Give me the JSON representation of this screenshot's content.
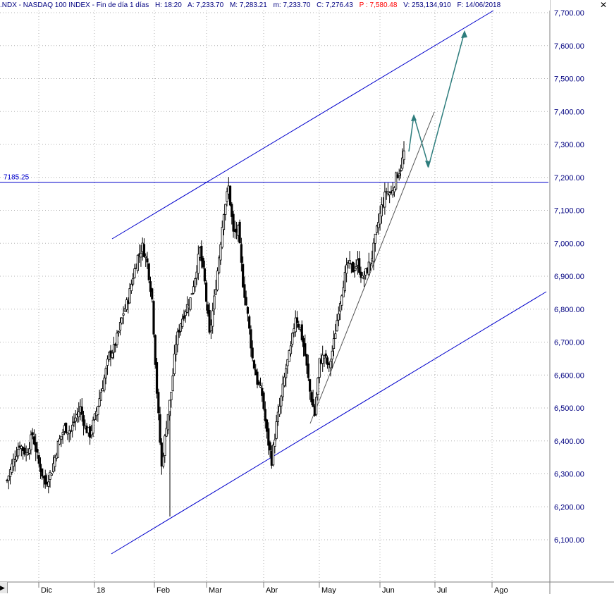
{
  "header": {
    "symbol": ".NDX - NASDAQ 100 INDEX - Fin de día 1 días",
    "high": "H: 18:20",
    "open": "A: 7,233.70",
    "max": "M: 7,283.21",
    "min": "m: 7,233.70",
    "close": "C: 7,276.43",
    "price": "P : 7,580.48",
    "volume": "V: 253,134,910",
    "date": "F: 14/06/2018",
    "close_button": "✕"
  },
  "scroll_arrow": "▶",
  "chart_data": {
    "type": "candlestick",
    "y_ticks": [
      "6,100.00",
      "6,200.00",
      "6,300.00",
      "6,400.00",
      "6,500.00",
      "6,600.00",
      "6,700.00",
      "6,800.00",
      "6,900.00",
      "7,000.00",
      "7,100.00",
      "7,200.00",
      "7,300.00",
      "7,400.00",
      "7,500.00",
      "7,600.00",
      "7,700.00"
    ],
    "y_values": [
      6100,
      6200,
      6300,
      6400,
      6500,
      6600,
      6700,
      6800,
      6900,
      7000,
      7100,
      7200,
      7300,
      7400,
      7500,
      7600,
      7700
    ],
    "x_labels": [
      "Dic",
      "18",
      "Feb",
      "Mar",
      "Abr",
      "May",
      "Jun",
      "Jul",
      "Ago"
    ],
    "ylim": [
      6030,
      7730
    ],
    "grid": true,
    "horizontal_level": {
      "value": 7185.25,
      "label": "7185.25",
      "color": "#0000cc"
    },
    "channel_color": "#0000cc",
    "projection_color": "#2e7d7d",
    "close_path": [
      [
        0,
        6280
      ],
      [
        4,
        6340
      ],
      [
        8,
        6390
      ],
      [
        12,
        6360
      ],
      [
        16,
        6420
      ],
      [
        20,
        6330
      ],
      [
        24,
        6270
      ],
      [
        28,
        6310
      ],
      [
        32,
        6390
      ],
      [
        36,
        6440
      ],
      [
        40,
        6430
      ],
      [
        43,
        6470
      ],
      [
        46,
        6500
      ],
      [
        49,
        6440
      ],
      [
        52,
        6420
      ],
      [
        55,
        6470
      ],
      [
        58,
        6530
      ],
      [
        61,
        6590
      ],
      [
        64,
        6660
      ],
      [
        67,
        6680
      ],
      [
        70,
        6730
      ],
      [
        73,
        6790
      ],
      [
        76,
        6830
      ],
      [
        79,
        6900
      ],
      [
        82,
        6960
      ],
      [
        85,
        6990
      ],
      [
        88,
        6940
      ],
      [
        91,
        6830
      ],
      [
        94,
        6550
      ],
      [
        97,
        6320
      ],
      [
        100,
        6450
      ],
      [
        103,
        6550
      ],
      [
        106,
        6700
      ],
      [
        109,
        6760
      ],
      [
        112,
        6800
      ],
      [
        115,
        6830
      ],
      [
        118,
        6900
      ],
      [
        121,
        6980
      ],
      [
        124,
        6880
      ],
      [
        127,
        6720
      ],
      [
        130,
        6830
      ],
      [
        133,
        6960
      ],
      [
        136,
        7100
      ],
      [
        139,
        7170
      ],
      [
        142,
        7030
      ],
      [
        145,
        7040
      ],
      [
        148,
        6880
      ],
      [
        151,
        6780
      ],
      [
        154,
        6650
      ],
      [
        157,
        6580
      ],
      [
        160,
        6540
      ],
      [
        163,
        6420
      ],
      [
        166,
        6340
      ],
      [
        169,
        6450
      ],
      [
        172,
        6530
      ],
      [
        175,
        6620
      ],
      [
        178,
        6680
      ],
      [
        181,
        6780
      ],
      [
        184,
        6740
      ],
      [
        187,
        6660
      ],
      [
        190,
        6550
      ],
      [
        193,
        6480
      ],
      [
        196,
        6640
      ],
      [
        199,
        6660
      ],
      [
        202,
        6620
      ],
      [
        205,
        6700
      ],
      [
        208,
        6800
      ],
      [
        211,
        6880
      ],
      [
        214,
        6940
      ],
      [
        217,
        6920
      ],
      [
        220,
        6940
      ],
      [
        223,
        6890
      ],
      [
        226,
        6920
      ],
      [
        229,
        6960
      ],
      [
        232,
        7040
      ],
      [
        235,
        7110
      ],
      [
        238,
        7160
      ],
      [
        241,
        7150
      ],
      [
        244,
        7200
      ],
      [
        247,
        7230
      ],
      [
        249,
        7276
      ]
    ],
    "candle_range": {
      "start_index": 0,
      "end_index": 249
    }
  }
}
